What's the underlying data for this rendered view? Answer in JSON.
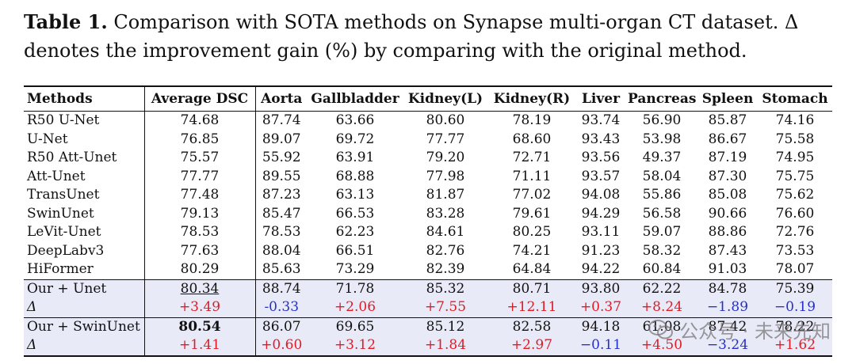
{
  "caption": {
    "label": "Table 1.",
    "line1": " Comparison with SOTA methods on Synapse multi-organ CT dataset. Δ",
    "line2": "denotes the improvement gain (%) by comparing with the original method."
  },
  "table": {
    "headers": [
      "Methods",
      "Average DSC",
      "Aorta",
      "Gallbladder",
      "Kidney(L)",
      "Kidney(R)",
      "Liver",
      "Pancreas",
      "Spleen",
      "Stomach"
    ],
    "rows": [
      [
        "R50 U-Net",
        "74.68",
        "87.74",
        "63.66",
        "80.60",
        "78.19",
        "93.74",
        "56.90",
        "85.87",
        "74.16"
      ],
      [
        "U-Net",
        "76.85",
        "89.07",
        "69.72",
        "77.77",
        "68.60",
        "93.43",
        "53.98",
        "86.67",
        "75.58"
      ],
      [
        "R50 Att-Unet",
        "75.57",
        "55.92",
        "63.91",
        "79.20",
        "72.71",
        "93.56",
        "49.37",
        "87.19",
        "74.95"
      ],
      [
        "Att-Unet",
        "77.77",
        "89.55",
        "68.88",
        "77.98",
        "71.11",
        "93.57",
        "58.04",
        "87.30",
        "75.75"
      ],
      [
        "TransUnet",
        "77.48",
        "87.23",
        "63.13",
        "81.87",
        "77.02",
        "94.08",
        "55.86",
        "85.08",
        "75.62"
      ],
      [
        "SwinUnet",
        "79.13",
        "85.47",
        "66.53",
        "83.28",
        "79.61",
        "94.29",
        "56.58",
        "90.66",
        "76.60"
      ],
      [
        "LeVit-Unet",
        "78.53",
        "78.53",
        "62.23",
        "84.61",
        "80.25",
        "93.11",
        "59.07",
        "88.86",
        "72.76"
      ],
      [
        "DeepLabv3",
        "77.63",
        "88.04",
        "66.51",
        "82.76",
        "74.21",
        "91.23",
        "58.32",
        "87.43",
        "73.53"
      ],
      [
        "HiFormer",
        "80.29",
        "85.63",
        "73.29",
        "82.39",
        "64.84",
        "94.22",
        "60.84",
        "91.03",
        "78.07"
      ]
    ],
    "our_unet": [
      "Our + Unet",
      "80.34",
      "88.74",
      "71.78",
      "85.32",
      "80.71",
      "93.80",
      "62.22",
      "84.78",
      "75.39"
    ],
    "delta_unet": [
      "Δ",
      "+3.49",
      "-0.33",
      "+2.06",
      "+7.55",
      "+12.11",
      "+0.37",
      "+8.24",
      "−1.89",
      "−0.19"
    ],
    "our_swin": [
      "Our + SwinUnet",
      "80.54",
      "86.07",
      "69.65",
      "85.12",
      "82.58",
      "94.18",
      "61.08",
      "87.42",
      "78.22"
    ],
    "delta_swin": [
      "Δ",
      "+1.41",
      "+0.60",
      "+3.12",
      "+1.84",
      "+2.97",
      "−0.11",
      "+4.50",
      "−3.24",
      "+1.62"
    ]
  },
  "watermark": {
    "text": "公众号 · 未来先知",
    "icon": "wechat-icon"
  },
  "colors": {
    "positive": "#e01b24",
    "negative": "#2530c8",
    "highlight": "#e9eaf8"
  }
}
